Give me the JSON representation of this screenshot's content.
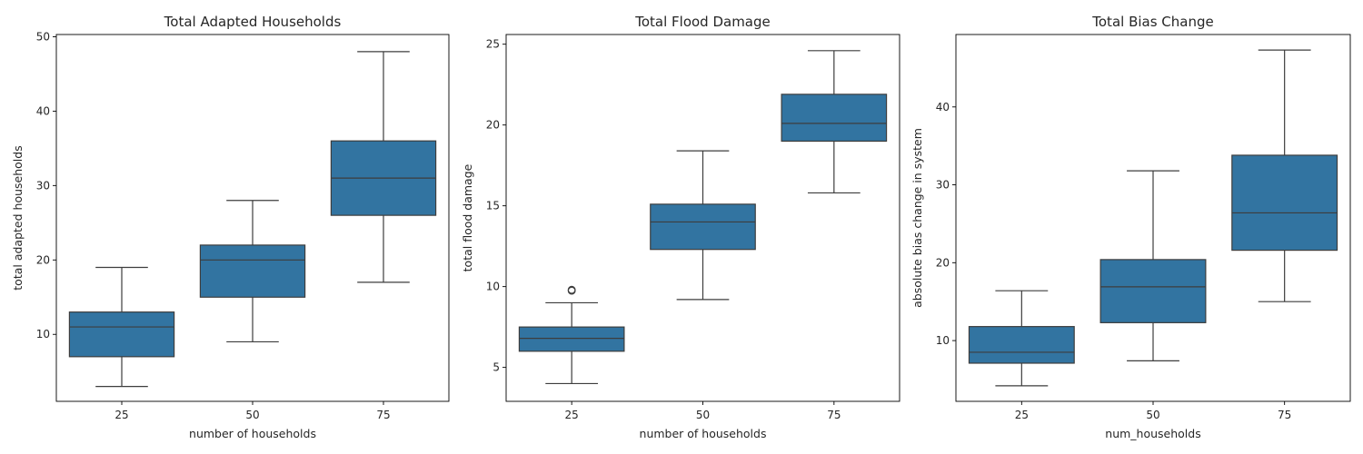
{
  "colors": {
    "box_fill": "#3274a1",
    "line": "#3d3d3d",
    "axis": "#000000",
    "background": "#ffffff"
  },
  "chart_data": [
    {
      "type": "boxplot",
      "title": "Total Adapted Households",
      "xlabel": "number of households",
      "ylabel": "total adapted households",
      "categories": [
        "25",
        "50",
        "75"
      ],
      "ylim": [
        1,
        50.3
      ],
      "yticks": [
        10,
        20,
        30,
        40,
        50
      ],
      "grid": false,
      "boxes": [
        {
          "category": "25",
          "whisker_low": 3,
          "q1": 7,
          "median": 11,
          "q3": 13,
          "whisker_high": 19,
          "outliers": []
        },
        {
          "category": "50",
          "whisker_low": 9,
          "q1": 15,
          "median": 20,
          "q3": 22,
          "whisker_high": 28,
          "outliers": []
        },
        {
          "category": "75",
          "whisker_low": 17,
          "q1": 26,
          "median": 31,
          "q3": 36,
          "whisker_high": 48,
          "outliers": []
        }
      ]
    },
    {
      "type": "boxplot",
      "title": "Total Flood Damage",
      "xlabel": "number of households",
      "ylabel": "total flood damage",
      "categories": [
        "25",
        "50",
        "75"
      ],
      "ylim": [
        2.9,
        25.6
      ],
      "yticks": [
        5,
        10,
        15,
        20,
        25
      ],
      "grid": false,
      "boxes": [
        {
          "category": "25",
          "whisker_low": 4.0,
          "q1": 6.0,
          "median": 6.8,
          "q3": 7.5,
          "whisker_high": 9.0,
          "outliers": [
            9.75,
            9.8
          ]
        },
        {
          "category": "50",
          "whisker_low": 9.2,
          "q1": 12.3,
          "median": 14.0,
          "q3": 15.1,
          "whisker_high": 18.4,
          "outliers": []
        },
        {
          "category": "75",
          "whisker_low": 15.8,
          "q1": 19.0,
          "median": 20.1,
          "q3": 21.9,
          "whisker_high": 24.6,
          "outliers": []
        }
      ]
    },
    {
      "type": "boxplot",
      "title": "Total Bias Change",
      "xlabel": "num_households",
      "ylabel": "absolute bias change in system",
      "categories": [
        "25",
        "50",
        "75"
      ],
      "ylim": [
        2.2,
        49.3
      ],
      "yticks": [
        10,
        20,
        30,
        40
      ],
      "grid": false,
      "boxes": [
        {
          "category": "25",
          "whisker_low": 4.2,
          "q1": 7.1,
          "median": 8.5,
          "q3": 11.8,
          "whisker_high": 16.4,
          "outliers": []
        },
        {
          "category": "50",
          "whisker_low": 7.4,
          "q1": 12.3,
          "median": 16.9,
          "q3": 20.4,
          "whisker_high": 31.8,
          "outliers": []
        },
        {
          "category": "75",
          "whisker_low": 15.0,
          "q1": 21.6,
          "median": 26.4,
          "q3": 33.8,
          "whisker_high": 47.3,
          "outliers": []
        }
      ]
    }
  ]
}
